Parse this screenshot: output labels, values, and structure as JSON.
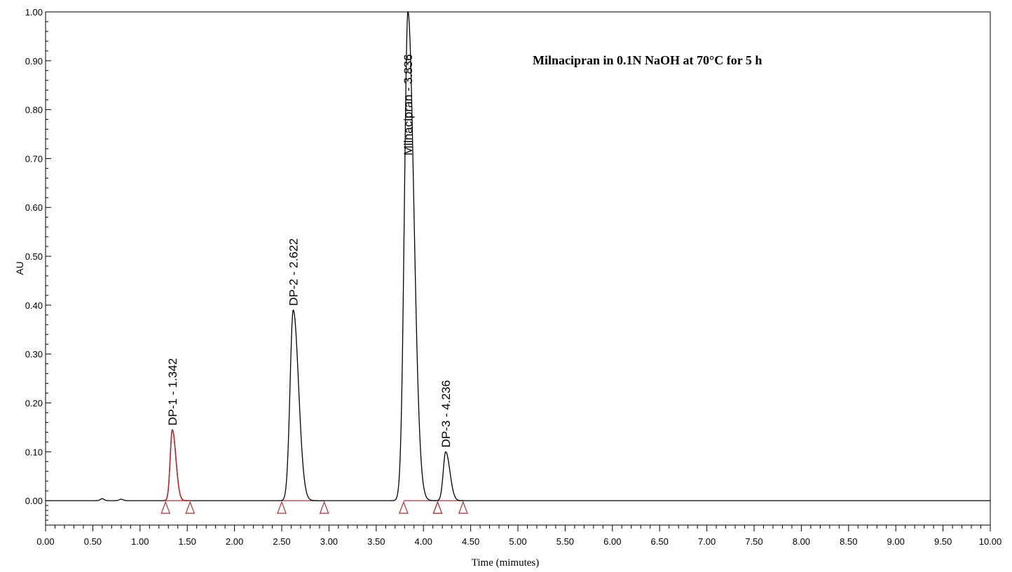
{
  "chart_data": {
    "type": "line",
    "title": "Milnacipran in 0.1N NaOH at 70°C for 5 h",
    "xlabel": "Time (mimutes)",
    "ylabel": "AU",
    "xlim": [
      0,
      10
    ],
    "ylim": [
      -0.05,
      1.0
    ],
    "x_ticks": [
      "0.00",
      "0.50",
      "1.00",
      "1.50",
      "2.00",
      "2.50",
      "3.00",
      "3.50",
      "4.00",
      "4.50",
      "5.00",
      "5.50",
      "6.00",
      "6.50",
      "7.00",
      "7.50",
      "8.00",
      "8.50",
      "9.00",
      "9.50",
      "10.00"
    ],
    "y_ticks": [
      "0.00",
      "0.10",
      "0.20",
      "0.30",
      "0.40",
      "0.50",
      "0.60",
      "0.70",
      "0.80",
      "0.90",
      "1.00"
    ],
    "grid": false,
    "baseline": 0.0,
    "peaks": [
      {
        "label": "DP-1 - 1.342",
        "rt": 1.342,
        "height": 0.145,
        "width": 0.03,
        "color": "#c0282d",
        "integration_start": 1.27,
        "integration_end": 1.53
      },
      {
        "label": "DP-2 - 2.622",
        "rt": 2.622,
        "height": 0.39,
        "width": 0.045,
        "color": "#000000",
        "integration_start": 2.5,
        "integration_end": 2.95
      },
      {
        "label": "Milnacipran - 3.836",
        "rt": 3.836,
        "height": 1.0,
        "width": 0.05,
        "color": "#000000",
        "integration_start": 3.79,
        "integration_end": 4.15
      },
      {
        "label": "DP-3 - 4.236",
        "rt": 4.236,
        "height": 0.1,
        "width": 0.035,
        "color": "#000000",
        "integration_start": 4.15,
        "integration_end": 4.42
      }
    ],
    "minor_bumps": [
      {
        "rt": 0.6,
        "height": 0.004
      },
      {
        "rt": 0.8,
        "height": 0.003
      }
    ],
    "integration_marker_color": "#c0282d",
    "trace_color": "#000000"
  }
}
